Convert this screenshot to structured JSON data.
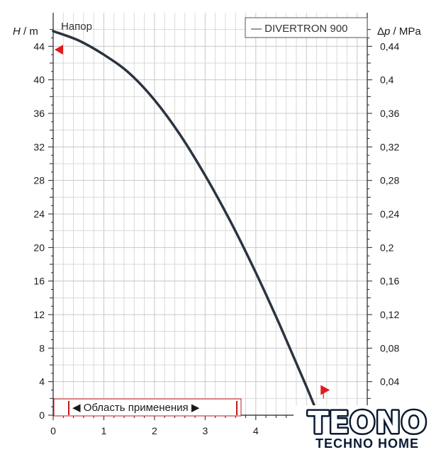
{
  "chart_data": {
    "type": "line",
    "title": "Напор",
    "legend_label": "— DIVERTRON 900",
    "xaxis": {
      "ticks": [
        "0",
        "1",
        "2",
        "3",
        "4"
      ],
      "range": [
        0,
        6.2
      ]
    },
    "yaxis_left": {
      "label_var": "H",
      "label_unit": " / m",
      "range": [
        0,
        48
      ],
      "ticks": [
        "0",
        "4",
        "8",
        "12",
        "16",
        "20",
        "24",
        "28",
        "32",
        "36",
        "40",
        "44"
      ]
    },
    "yaxis_right": {
      "label_var": "p",
      "label_prefix": "Δ",
      "label_unit": " / MPa",
      "ticks": [
        "0,04",
        "0,08",
        "0,12",
        "0,16",
        "0,2",
        "0,24",
        "0,28",
        "0,32",
        "0,36",
        "0,4",
        "0,44"
      ]
    },
    "grid": true,
    "series": [
      {
        "name": "DIVERTRON 900",
        "color": "#2b3440",
        "x": [
          0,
          0.5,
          1,
          1.5,
          2,
          2.5,
          3,
          3.5,
          4,
          4.5,
          5,
          5.5,
          5.6
        ],
        "y": [
          45.8,
          44.7,
          43.0,
          40.8,
          37.6,
          33.5,
          28.6,
          23.1,
          17.0,
          10.4,
          3.4,
          -4.0,
          -5.5
        ]
      }
    ],
    "markers": [
      {
        "side": "left",
        "y": 43.6
      },
      {
        "side": "right",
        "x": 5.28,
        "y": 3.0
      }
    ],
    "application_range": {
      "label": "◀ Область применения ▶",
      "x_from": 0.3,
      "x_to": 3.7
    }
  },
  "logo": {
    "brand": "TEONO",
    "subtitle": "TECHNO HOME",
    "colors": {
      "outline": "#0a1a33",
      "accent": "#2fa3ff"
    }
  },
  "colors": {
    "grid": "#d9d9d9",
    "axis": "#222222",
    "marker": "#e01b1b",
    "range_box": "#c21818"
  }
}
